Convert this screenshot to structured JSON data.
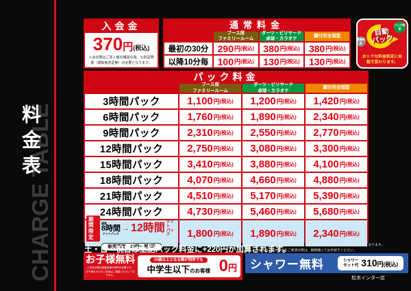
{
  "sidebar": {
    "title": "料金表",
    "watermark": "CHARGE TABLE"
  },
  "units": {
    "yen": "円",
    "tax": "(税込)"
  },
  "admission": {
    "title": "入会金",
    "amount": "370",
    "note": "入会の際はご本人様の確認の為、公的証明書（運転免許証等）が必要となります。"
  },
  "columns": [
    {
      "line1": "ブース席",
      "line2": "ファミリールーム",
      "color": "#7b5a0e"
    },
    {
      "line1": "ダーツ・ビリヤード",
      "line2": "卓球・カラオケ",
      "color": "#009944"
    },
    {
      "line1": "鍵付完全個室",
      "line2": "",
      "color": "#ee8800"
    }
  ],
  "normal": {
    "title": "通常料金",
    "rows": [
      {
        "label": "最初の30分",
        "values": [
          "290",
          "380",
          "380"
        ]
      },
      {
        "label": "以降10分毎",
        "values": [
          "100",
          "130",
          "130"
        ]
      }
    ]
  },
  "auto_badge": {
    "line1": "自動",
    "line2": "パック",
    "bubble_right": "パック料金",
    "bubble_left": "通常料金",
    "note": "おトクな料金設定に自動で変わります。"
  },
  "pack": {
    "title": "パック料金",
    "rows": [
      {
        "label": "3時間パック",
        "values": [
          "1,100",
          "1,200",
          "1,420"
        ]
      },
      {
        "label": "6時間パック",
        "values": [
          "1,760",
          "1,890",
          "2,340"
        ]
      },
      {
        "label": "9時間パック",
        "values": [
          "2,310",
          "2,550",
          "2,770"
        ]
      },
      {
        "label": "12時間パック",
        "values": [
          "2,750",
          "3,080",
          "3,300"
        ]
      },
      {
        "label": "15時間パック",
        "values": [
          "3,410",
          "3,880",
          "4,100"
        ]
      },
      {
        "label": "18時間パック",
        "values": [
          "4,070",
          "4,660",
          "4,880"
        ]
      },
      {
        "label": "21時間パック",
        "values": [
          "4,510",
          "5,170",
          "5,390"
        ]
      },
      {
        "label": "24時間パック",
        "values": [
          "4,730",
          "5,460",
          "5,680"
        ]
      }
    ],
    "night": {
      "badge_line1": "期間",
      "badge_line2": "限定",
      "pre_small": "通常",
      "from": "8時間",
      "from_small": "ナイトパック",
      "arrow": "→",
      "to": "12時間",
      "to_small1": "ナイト",
      "to_small2": "パック",
      "sale": "販売時間　20時～翌4時",
      "values": [
        "1,800",
        "1,890",
        "2,340"
      ]
    }
  },
  "notes": {
    "weekend": "土・日・祝日は上記パック料金に+220円が加算されます。",
    "fine1": "※ナイトパック販売時間は20時～翌4時まで。※24時間毎にご精算をお願いしております。",
    "fine2": "※席の移動・途中外出をご希望の際は、精算機にてお手続きください。"
  },
  "kids": {
    "title": "お子様無料",
    "note1": "ご利用の際は保護者様の同伴が必要です。",
    "note2": "お子様のみでのご利用はご遠慮いただいております。",
    "badge": "20歳以上となる親が同伴でも",
    "target_big": "中学生以下",
    "target_small": "のお客様",
    "amount": "0"
  },
  "shower": {
    "title": "シャワー無料",
    "set1": "シャワー",
    "set2": "セット代",
    "amount": "310"
  },
  "store_name": "松本インター店"
}
